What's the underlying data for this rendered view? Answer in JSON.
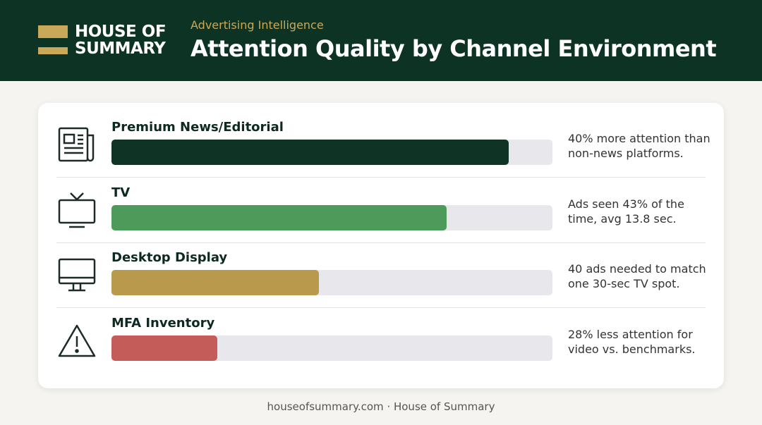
{
  "header": {
    "logo_lines": [
      "HOUSE OF",
      "SUMMARY"
    ],
    "eyebrow": "Advertising Intelligence"
  },
  "chart_data": {
    "type": "bar",
    "title": "Attention Quality by Channel Environment",
    "categories": [
      "Premium News/Editorial",
      "TV",
      "Desktop Display",
      "MFA Inventory"
    ],
    "values": [
      90,
      76,
      47,
      24
    ],
    "colors": [
      "#0f3324",
      "#4e9a5a",
      "#b99a4c",
      "#c45c5a"
    ],
    "annotations": [
      "40% more attention than non-news platforms.",
      "Ads seen 43% of the time, avg 13.8 sec.",
      "40 ads needed to match one 30-sec TV spot.",
      "28% less attention for video vs. benchmarks."
    ],
    "xlim": [
      0,
      100
    ]
  },
  "footer": "houseofsummary.com · House of Summary"
}
